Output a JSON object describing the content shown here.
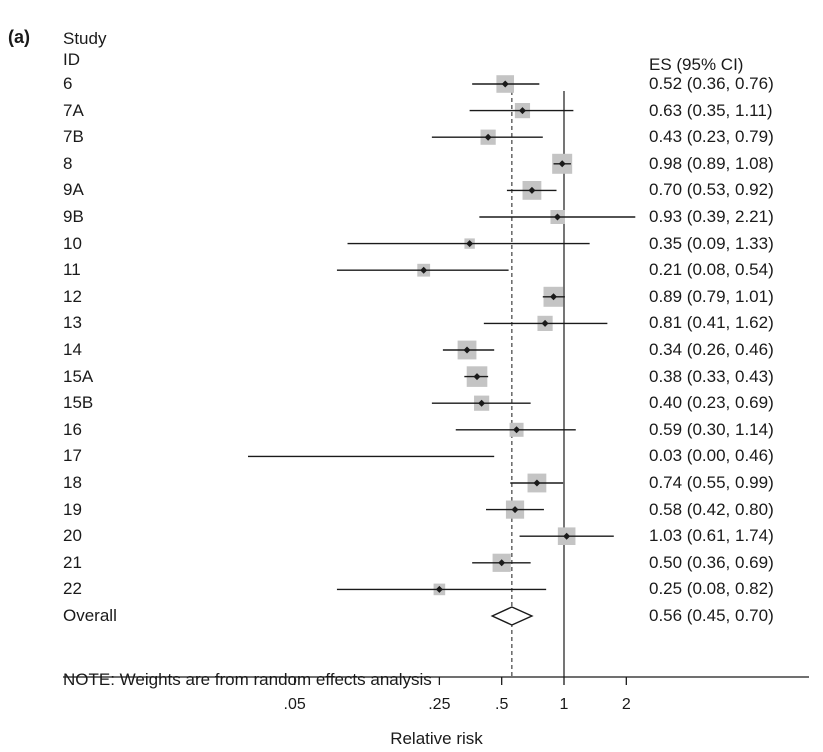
{
  "chart_data": {
    "type": "forest",
    "panel_label": "(a)",
    "study_header": [
      "Study",
      "ID"
    ],
    "es_header": "ES (95% CI)",
    "xlabel": "Relative risk",
    "x_scale": "log",
    "xlim": [
      0.018,
      2.3
    ],
    "x_ticks": [
      0.05,
      0.25,
      0.5,
      1,
      2
    ],
    "x_tick_labels": [
      ".05",
      ".25",
      ".5",
      "1",
      "2"
    ],
    "null_line": 1,
    "note": "NOTE: Weights are from random effects analysis",
    "studies": [
      {
        "id": "6",
        "es": 0.52,
        "lo": 0.36,
        "hi": 0.76,
        "label": "0.52 (0.36, 0.76)",
        "weight": 1.3
      },
      {
        "id": "7A",
        "es": 0.63,
        "lo": 0.35,
        "hi": 1.11,
        "label": "0.63 (0.35, 1.11)",
        "weight": 1.1
      },
      {
        "id": "7B",
        "es": 0.43,
        "lo": 0.23,
        "hi": 0.79,
        "label": "0.43 (0.23, 0.79)",
        "weight": 1.1
      },
      {
        "id": "8",
        "es": 0.98,
        "lo": 0.89,
        "hi": 1.08,
        "label": "0.98 (0.89, 1.08)",
        "weight": 1.5
      },
      {
        "id": "9A",
        "es": 0.7,
        "lo": 0.53,
        "hi": 0.92,
        "label": "0.70 (0.53, 0.92)",
        "weight": 1.4
      },
      {
        "id": "9B",
        "es": 0.93,
        "lo": 0.39,
        "hi": 2.21,
        "label": "0.93 (0.39, 2.21)",
        "weight": 1.0
      },
      {
        "id": "10",
        "es": 0.35,
        "lo": 0.09,
        "hi": 1.33,
        "label": "0.35 (0.09, 1.33)",
        "weight": 0.7
      },
      {
        "id": "11",
        "es": 0.21,
        "lo": 0.08,
        "hi": 0.54,
        "label": "0.21 (0.08, 0.54)",
        "weight": 0.9
      },
      {
        "id": "12",
        "es": 0.89,
        "lo": 0.79,
        "hi": 1.01,
        "label": "0.89 (0.79, 1.01)",
        "weight": 1.5
      },
      {
        "id": "13",
        "es": 0.81,
        "lo": 0.41,
        "hi": 1.62,
        "label": "0.81 (0.41, 1.62)",
        "weight": 1.1
      },
      {
        "id": "14",
        "es": 0.34,
        "lo": 0.26,
        "hi": 0.46,
        "label": "0.34 (0.26, 0.46)",
        "weight": 1.4
      },
      {
        "id": "15A",
        "es": 0.38,
        "lo": 0.33,
        "hi": 0.43,
        "label": "0.38 (0.33, 0.43)",
        "weight": 1.55
      },
      {
        "id": "15B",
        "es": 0.4,
        "lo": 0.23,
        "hi": 0.69,
        "label": "0.40 (0.23, 0.69)",
        "weight": 1.1
      },
      {
        "id": "16",
        "es": 0.59,
        "lo": 0.3,
        "hi": 1.14,
        "label": "0.59 (0.30, 1.14)",
        "weight": 1.0
      },
      {
        "id": "17",
        "es": 0.03,
        "lo": 0.0,
        "hi": 0.46,
        "label": "0.03 (0.00, 0.46)",
        "weight": 0
      },
      {
        "id": "18",
        "es": 0.74,
        "lo": 0.55,
        "hi": 0.99,
        "label": "0.74 (0.55, 0.99)",
        "weight": 1.4
      },
      {
        "id": "19",
        "es": 0.58,
        "lo": 0.42,
        "hi": 0.8,
        "label": "0.58 (0.42, 0.80)",
        "weight": 1.35
      },
      {
        "id": "20",
        "es": 1.03,
        "lo": 0.61,
        "hi": 1.74,
        "label": "1.03 (0.61, 1.74)",
        "weight": 1.3
      },
      {
        "id": "21",
        "es": 0.5,
        "lo": 0.36,
        "hi": 0.69,
        "label": "0.50 (0.36, 0.69)",
        "weight": 1.35
      },
      {
        "id": "22",
        "es": 0.25,
        "lo": 0.08,
        "hi": 0.82,
        "label": "0.25 (0.08, 0.82)",
        "weight": 0.8
      }
    ],
    "overall": {
      "id": "Overall",
      "es": 0.56,
      "lo": 0.45,
      "hi": 0.7,
      "label": "0.56 (0.45, 0.70)"
    },
    "colors": {
      "weight_box": "#c4c4c4",
      "line": "#1a1a1a",
      "point": "#1a1a1a"
    }
  }
}
